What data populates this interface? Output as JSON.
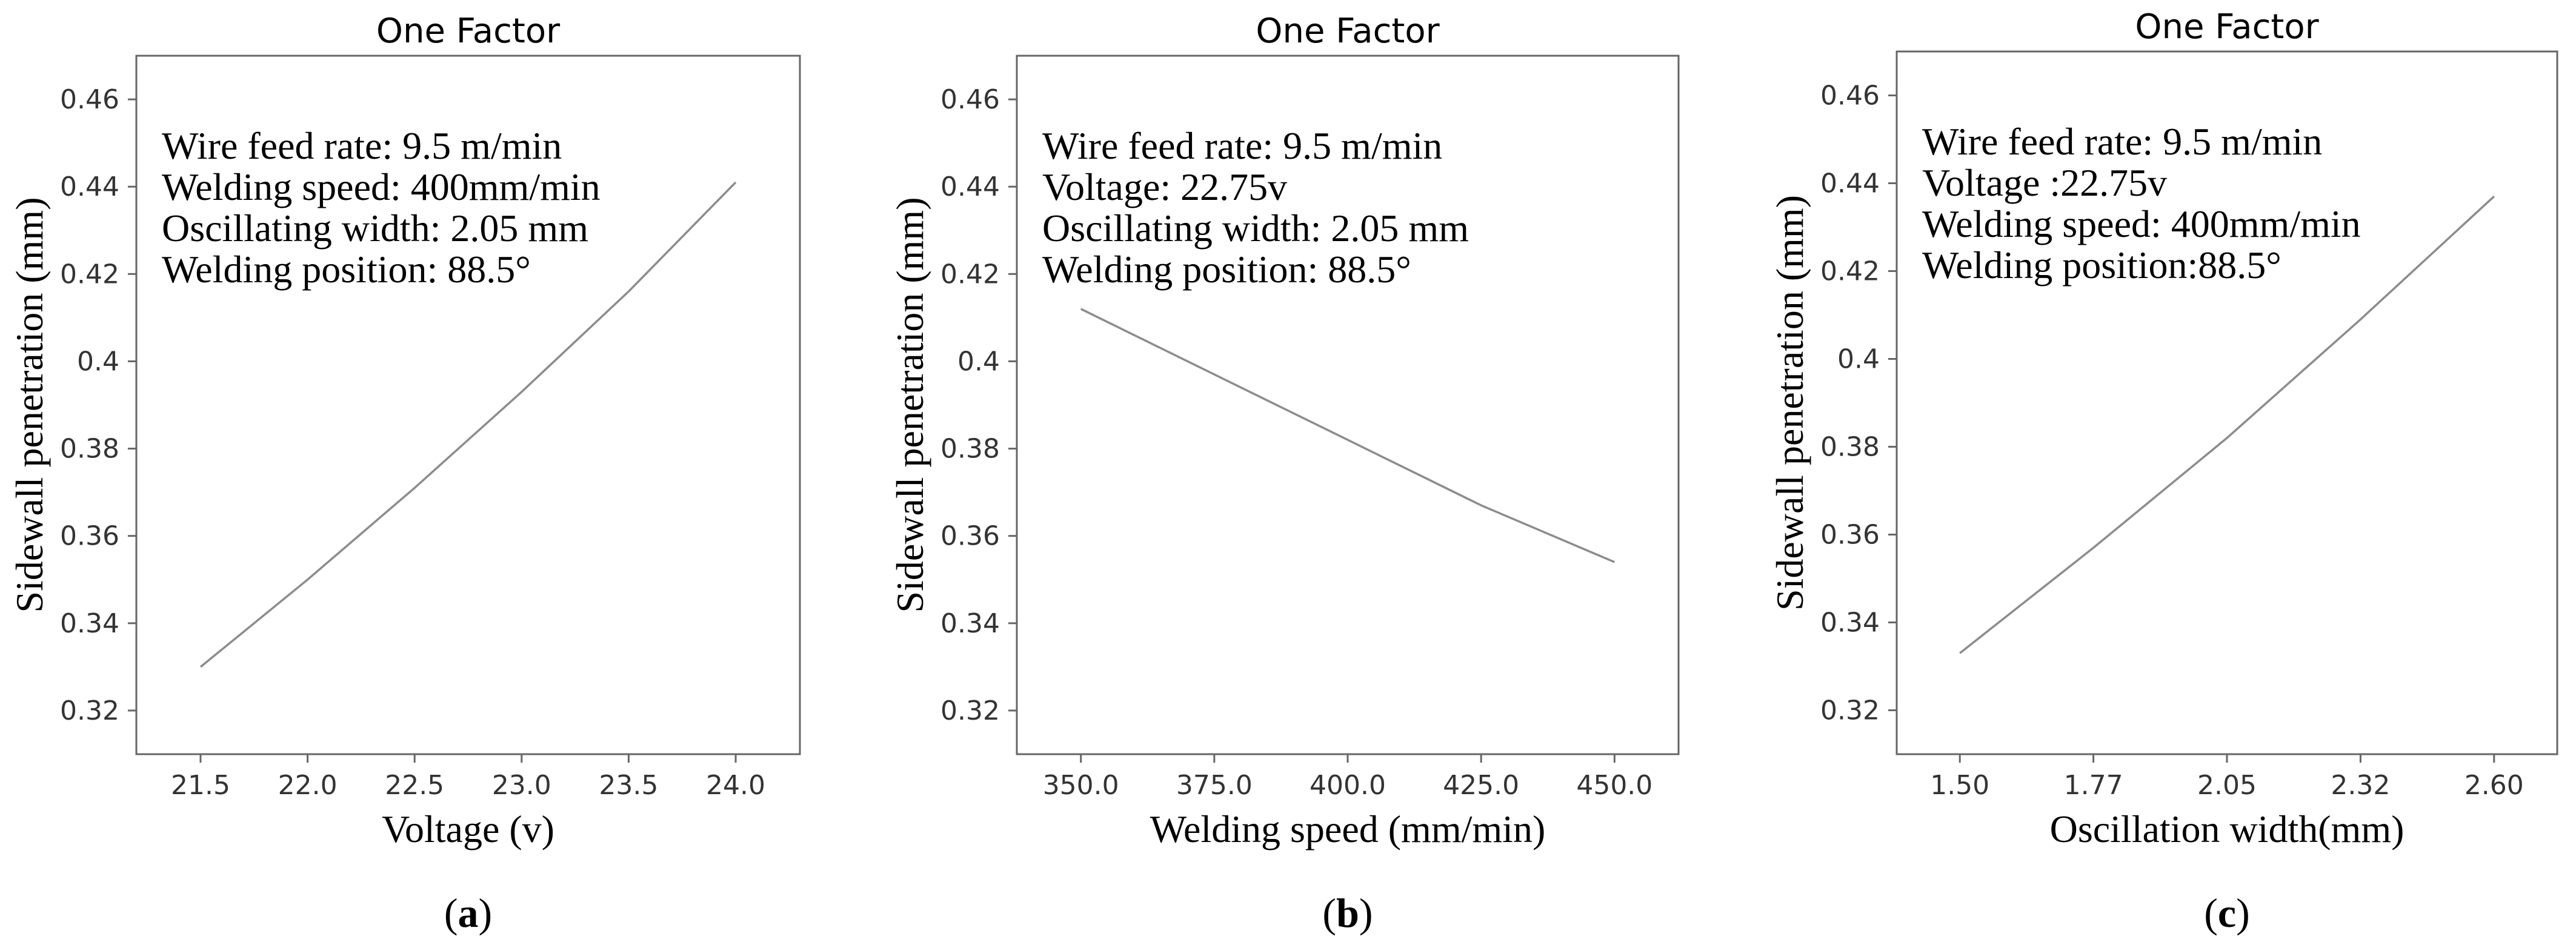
{
  "chart_data": [
    {
      "type": "line",
      "panel": "(a)",
      "panel_prefix": "(",
      "panel_letter": "a",
      "panel_suffix": ")",
      "title": "One Factor",
      "xlabel": "Voltage (v)",
      "ylabel": "Sidewall penetration (mm)",
      "xlim": [
        21.2,
        24.3
      ],
      "ylim": [
        0.31,
        0.47
      ],
      "xticks": [
        21.5,
        22.0,
        22.5,
        23.0,
        23.5,
        24.0
      ],
      "xtick_labels": [
        "21.5",
        "22.0",
        "22.5",
        "23.0",
        "23.5",
        "24.0"
      ],
      "yticks": [
        0.32,
        0.34,
        0.36,
        0.38,
        0.4,
        0.42,
        0.44,
        0.46
      ],
      "ytick_labels": [
        "0.32",
        "0.34",
        "0.36",
        "0.38",
        "0.4",
        "0.42",
        "0.44",
        "0.46"
      ],
      "annotations": [
        "Wire feed rate: 9.5 m/min",
        "Welding speed: 400mm/min",
        "Oscillating width: 2.05 mm",
        "Welding position: 88.5°"
      ],
      "series": [
        {
          "name": "Sidewall penetration",
          "x": [
            21.5,
            22.0,
            22.5,
            23.0,
            23.5,
            24.0
          ],
          "y": [
            0.33,
            0.35,
            0.371,
            0.393,
            0.416,
            0.441
          ]
        }
      ]
    },
    {
      "type": "line",
      "panel": "(b)",
      "panel_prefix": "(",
      "panel_letter": "b",
      "panel_suffix": ")",
      "title": "One Factor",
      "xlabel": "Welding speed (mm/min)",
      "ylabel": "Sidewall penetration (mm)",
      "xlim": [
        338,
        462
      ],
      "ylim": [
        0.31,
        0.47
      ],
      "xticks": [
        350.0,
        375.0,
        400.0,
        425.0,
        450.0
      ],
      "xtick_labels": [
        "350.0",
        "375.0",
        "400.0",
        "425.0",
        "450.0"
      ],
      "yticks": [
        0.32,
        0.34,
        0.36,
        0.38,
        0.4,
        0.42,
        0.44,
        0.46
      ],
      "ytick_labels": [
        "0.32",
        "0.34",
        "0.36",
        "0.38",
        "0.4",
        "0.42",
        "0.44",
        "0.46"
      ],
      "annotations": [
        "Wire feed rate: 9.5 m/min",
        "Voltage: 22.75v",
        "Oscillating width: 2.05 mm",
        "Welding position: 88.5°"
      ],
      "series": [
        {
          "name": "Sidewall penetration",
          "x": [
            350,
            375,
            400,
            425,
            450
          ],
          "y": [
            0.412,
            0.397,
            0.382,
            0.367,
            0.354
          ]
        }
      ]
    },
    {
      "type": "line",
      "panel": "(c)",
      "panel_prefix": "(",
      "panel_letter": "c",
      "panel_suffix": ")",
      "title": "One Factor",
      "xlabel": "Oscillation width(mm)",
      "ylabel": "Sidewall penetration (mm)",
      "xlim": [
        1.37,
        2.73
      ],
      "ylim": [
        0.31,
        0.47
      ],
      "xticks": [
        1.5,
        1.775,
        2.05,
        2.325,
        2.6
      ],
      "xtick_labels": [
        "1.50",
        "1.77",
        "2.05",
        "2.32",
        "2.60"
      ],
      "yticks": [
        0.32,
        0.34,
        0.36,
        0.38,
        0.4,
        0.42,
        0.44,
        0.46
      ],
      "ytick_labels": [
        "0.32",
        "0.34",
        "0.36",
        "0.38",
        "0.4",
        "0.42",
        "0.44",
        "0.46"
      ],
      "annotations": [
        "Wire feed rate: 9.5 m/min",
        "Voltage :22.75v",
        "Welding speed: 400mm/min",
        "Welding position:88.5°"
      ],
      "series": [
        {
          "name": "Sidewall penetration",
          "x": [
            1.5,
            1.775,
            2.05,
            2.325,
            2.6
          ],
          "y": [
            0.333,
            0.357,
            0.382,
            0.409,
            0.437
          ]
        }
      ]
    }
  ]
}
